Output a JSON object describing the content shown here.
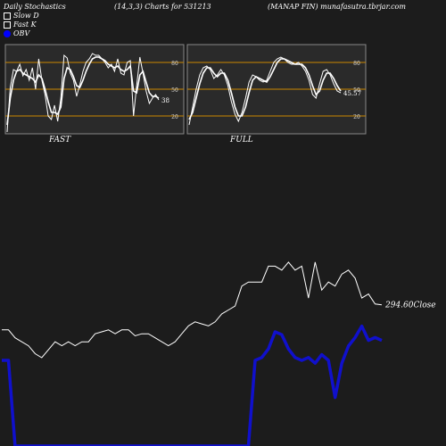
{
  "header": {
    "left": "Daily Stochastics",
    "center": "(14,3,3) Charts for 531213",
    "right": "(MANAP FIN) munafasutra.tbrjar.com"
  },
  "legend": {
    "slow_d": "Slow D",
    "fast_k": "Fast K",
    "obv": "OBV"
  },
  "colors": {
    "background": "#1c1c1c",
    "panel_bg": "#2a2a2a",
    "level_lines": "#cc8800",
    "stoch_lines": "#ffffff",
    "close_line": "#ffffff",
    "obv_line": "#1010cc"
  },
  "chart_data": [
    {
      "type": "line",
      "title": "FAST",
      "ylim": [
        0,
        100
      ],
      "yticks": [
        20,
        50,
        80
      ],
      "level_lines": [
        20,
        50,
        80
      ],
      "last_value_label": "38",
      "series": [
        {
          "values": [
            2,
            52,
            72,
            70,
            78,
            65,
            72,
            60,
            74,
            50,
            84,
            60,
            44,
            20,
            16,
            32,
            14,
            40,
            88,
            85,
            68,
            60,
            42,
            55,
            70,
            80,
            84,
            90,
            88,
            88,
            84,
            80,
            74,
            78,
            70,
            84,
            68,
            66,
            80,
            82,
            20,
            54,
            86,
            68,
            48,
            34,
            40,
            44,
            38
          ]
        },
        {
          "values": [
            10,
            40,
            60,
            70,
            72,
            68,
            66,
            64,
            62,
            58,
            66,
            62,
            50,
            36,
            24,
            24,
            22,
            30,
            62,
            74,
            72,
            64,
            54,
            52,
            60,
            70,
            78,
            84,
            86,
            86,
            84,
            82,
            78,
            76,
            74,
            76,
            72,
            70,
            72,
            76,
            48,
            46,
            66,
            70,
            58,
            46,
            42,
            42,
            40
          ]
        }
      ]
    },
    {
      "type": "line",
      "title": "FULL",
      "ylim": [
        0,
        100
      ],
      "yticks": [
        20,
        50,
        80
      ],
      "level_lines": [
        20,
        50,
        80
      ],
      "last_value_label": "45.57",
      "series": [
        {
          "values": [
            10,
            30,
            50,
            66,
            74,
            76,
            72,
            62,
            66,
            72,
            66,
            54,
            36,
            22,
            14,
            24,
            40,
            58,
            66,
            64,
            60,
            58,
            60,
            70,
            80,
            84,
            86,
            84,
            80,
            78,
            78,
            80,
            76,
            70,
            60,
            44,
            40,
            56,
            70,
            72,
            66,
            56,
            48,
            46
          ]
        },
        {
          "values": [
            16,
            24,
            40,
            56,
            68,
            74,
            74,
            68,
            64,
            68,
            68,
            60,
            46,
            30,
            20,
            20,
            30,
            46,
            60,
            64,
            62,
            60,
            58,
            64,
            72,
            80,
            84,
            84,
            82,
            80,
            78,
            78,
            78,
            74,
            66,
            54,
            44,
            48,
            60,
            68,
            68,
            62,
            54,
            48
          ]
        }
      ]
    },
    {
      "type": "line",
      "title": "",
      "last_value_label": "294.60",
      "last_value_suffix": "Close",
      "series": [
        {
          "name": "Close",
          "values": [
            282,
            282,
            278,
            276,
            274,
            270,
            268,
            272,
            276,
            274,
            276,
            274,
            276,
            276,
            280,
            281,
            282,
            280,
            282,
            282,
            279,
            280,
            280,
            278,
            276,
            274,
            276,
            280,
            284,
            286,
            285,
            284,
            286,
            290,
            292,
            294,
            304,
            306,
            306,
            306,
            314,
            314,
            312,
            316,
            312,
            314,
            298,
            316,
            302,
            306,
            304,
            310,
            312,
            308,
            298,
            300,
            295,
            294.6
          ]
        },
        {
          "name": "OBV",
          "values": [
            60,
            60,
            0,
            0,
            0,
            0,
            0,
            0,
            0,
            0,
            0,
            0,
            0,
            0,
            0,
            0,
            0,
            0,
            0,
            0,
            0,
            0,
            0,
            0,
            0,
            0,
            0,
            0,
            0,
            0,
            0,
            0,
            0,
            0,
            0,
            0,
            0,
            0,
            60,
            62,
            68,
            80,
            78,
            68,
            62,
            60,
            62,
            58,
            64,
            60,
            34,
            58,
            70,
            76,
            84,
            74,
            76,
            74
          ]
        }
      ]
    }
  ],
  "panels": {
    "fast_label": "FAST",
    "full_label": "FULL"
  }
}
